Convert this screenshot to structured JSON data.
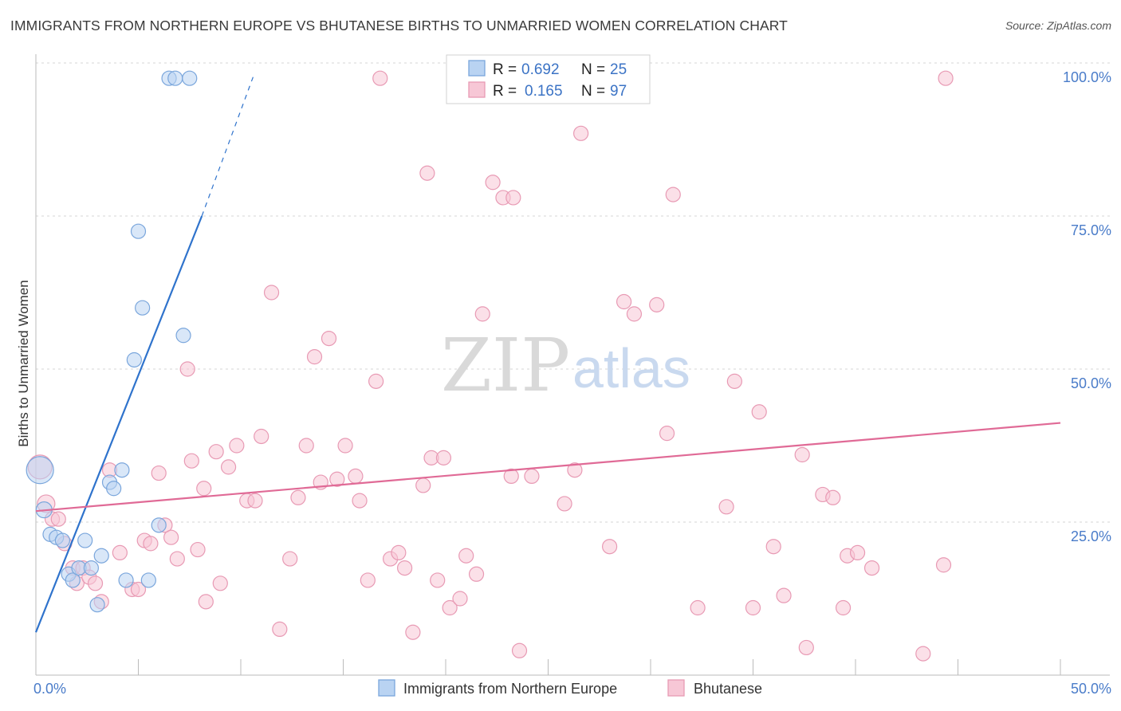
{
  "title": "IMMIGRANTS FROM NORTHERN EUROPE VS BHUTANESE BIRTHS TO UNMARRIED WOMEN CORRELATION CHART",
  "source": "Source: ZipAtlas.com",
  "watermark": {
    "zip": "ZIP",
    "atlas": "atlas"
  },
  "colors": {
    "blue_fill": "#b9d3f2",
    "blue_stroke": "#7aa6dc",
    "blue_line": "#2f73cc",
    "pink_fill": "#f7c7d6",
    "pink_stroke": "#e89ab4",
    "pink_line": "#e06a96",
    "grid": "#d5d5d5",
    "tick_label": "#4a7cc9"
  },
  "stats_box": {
    "rows": [
      {
        "series": "blue",
        "r_label": "R =",
        "r_value": "0.692",
        "n_label": "N =",
        "n_value": "25"
      },
      {
        "series": "pink",
        "r_label": "R =",
        "r_value": "0.165",
        "n_label": "N =",
        "n_value": "97"
      }
    ]
  },
  "chart_data": {
    "type": "scatter",
    "title": "IMMIGRANTS FROM NORTHERN EUROPE VS BHUTANESE BIRTHS TO UNMARRIED WOMEN CORRELATION CHART",
    "xlabel": "",
    "ylabel": "Births to Unmarried Women",
    "xlim": [
      0,
      50
    ],
    "ylim": [
      0,
      100
    ],
    "x_tick_labels": [
      "0.0%",
      "50.0%"
    ],
    "y_tick_labels": [
      "25.0%",
      "50.0%",
      "75.0%",
      "100.0%"
    ],
    "y_ticks": [
      25,
      50,
      75,
      100
    ],
    "legend": [
      "Immigrants from Northern Europe",
      "Bhutanese"
    ],
    "legend_position": "bottom-center",
    "series": [
      {
        "name": "Immigrants from Northern Europe",
        "color": "blue",
        "r": 0.692,
        "n": 25,
        "points": [
          [
            0.2,
            33.5,
            17
          ],
          [
            0.4,
            27,
            10
          ],
          [
            0.7,
            23,
            9
          ],
          [
            1.0,
            22.5,
            9
          ],
          [
            1.3,
            22,
            9
          ],
          [
            1.6,
            16.5,
            9
          ],
          [
            1.8,
            15.5,
            9
          ],
          [
            2.1,
            17.5,
            9
          ],
          [
            2.4,
            22,
            9
          ],
          [
            2.7,
            17.5,
            9
          ],
          [
            3.0,
            11.5,
            9
          ],
          [
            3.2,
            19.5,
            9
          ],
          [
            3.6,
            31.5,
            9
          ],
          [
            3.8,
            30.5,
            9
          ],
          [
            4.2,
            33.5,
            9
          ],
          [
            4.4,
            15.5,
            9
          ],
          [
            4.8,
            51.5,
            9
          ],
          [
            5.0,
            72.5,
            9
          ],
          [
            5.2,
            60,
            9
          ],
          [
            5.5,
            15.5,
            9
          ],
          [
            6.0,
            24.5,
            9
          ],
          [
            7.2,
            55.5,
            9
          ],
          [
            6.5,
            97.5,
            9
          ],
          [
            6.8,
            97.5,
            9
          ],
          [
            7.5,
            97.5,
            9
          ]
        ],
        "trend": {
          "x0": 0,
          "y0": 7.0,
          "x1": 8.1,
          "y1": 75.0,
          "dash_x1": 10.6,
          "dash_y1": 97.7
        }
      },
      {
        "name": "Bhutanese",
        "color": "pink",
        "r": 0.165,
        "n": 97,
        "points": [
          [
            0.2,
            34,
            15
          ],
          [
            0.5,
            28,
            11
          ],
          [
            0.8,
            25.5,
            9
          ],
          [
            1.1,
            25.5,
            9
          ],
          [
            1.4,
            21.5,
            9
          ],
          [
            1.8,
            17.5,
            9
          ],
          [
            2.0,
            15,
            9
          ],
          [
            2.3,
            17.5,
            9
          ],
          [
            2.6,
            16,
            9
          ],
          [
            2.9,
            15,
            9
          ],
          [
            3.2,
            12,
            9
          ],
          [
            3.6,
            33.5,
            9
          ],
          [
            4.1,
            20,
            9
          ],
          [
            4.7,
            14,
            9
          ],
          [
            5.0,
            14,
            9
          ],
          [
            5.3,
            22,
            9
          ],
          [
            5.6,
            21.5,
            9
          ],
          [
            6.0,
            33,
            9
          ],
          [
            6.3,
            24.5,
            9
          ],
          [
            6.6,
            22.5,
            9
          ],
          [
            6.9,
            19,
            9
          ],
          [
            7.4,
            50,
            9
          ],
          [
            7.6,
            35,
            9
          ],
          [
            7.9,
            20.5,
            9
          ],
          [
            8.2,
            30.5,
            9
          ],
          [
            8.3,
            12,
            9
          ],
          [
            8.8,
            36.5,
            9
          ],
          [
            9.0,
            15,
            9
          ],
          [
            9.4,
            34,
            9
          ],
          [
            9.8,
            37.5,
            9
          ],
          [
            10.3,
            28.5,
            9
          ],
          [
            10.7,
            28.5,
            9
          ],
          [
            11.0,
            39,
            9
          ],
          [
            11.5,
            62.5,
            9
          ],
          [
            11.9,
            7.5,
            9
          ],
          [
            12.4,
            19,
            9
          ],
          [
            12.8,
            29,
            9
          ],
          [
            13.2,
            37.5,
            9
          ],
          [
            13.6,
            52,
            9
          ],
          [
            13.9,
            31.5,
            9
          ],
          [
            14.3,
            55,
            9
          ],
          [
            14.7,
            32,
            9
          ],
          [
            15.1,
            37.5,
            9
          ],
          [
            15.6,
            32.5,
            9
          ],
          [
            15.8,
            28.5,
            9
          ],
          [
            16.2,
            15.5,
            9
          ],
          [
            16.6,
            48,
            9
          ],
          [
            16.8,
            97.5,
            9
          ],
          [
            17.3,
            19,
            9
          ],
          [
            17.7,
            20,
            9
          ],
          [
            18.0,
            17.5,
            9
          ],
          [
            18.4,
            7,
            9
          ],
          [
            18.9,
            31,
            9
          ],
          [
            19.1,
            82,
            9
          ],
          [
            19.3,
            35.5,
            9
          ],
          [
            19.6,
            15.5,
            9
          ],
          [
            19.9,
            35.5,
            9
          ],
          [
            20.2,
            11,
            9
          ],
          [
            20.7,
            12.5,
            9
          ],
          [
            21.0,
            19.5,
            9
          ],
          [
            21.5,
            16.5,
            9
          ],
          [
            21.8,
            59,
            9
          ],
          [
            22.3,
            80.5,
            9
          ],
          [
            22.8,
            78,
            9
          ],
          [
            23.2,
            32.5,
            9
          ],
          [
            23.3,
            78,
            9
          ],
          [
            23.6,
            4,
            9
          ],
          [
            24.2,
            32.5,
            9
          ],
          [
            25.8,
            28,
            9
          ],
          [
            26.3,
            33.5,
            9
          ],
          [
            26.6,
            88.5,
            9
          ],
          [
            28.0,
            21,
            9
          ],
          [
            28.7,
            61,
            9
          ],
          [
            29.2,
            59,
            9
          ],
          [
            30.3,
            60.5,
            9
          ],
          [
            30.8,
            39.5,
            9
          ],
          [
            31.1,
            78.5,
            9
          ],
          [
            32.3,
            11,
            9
          ],
          [
            33.7,
            27.5,
            9
          ],
          [
            34.1,
            48,
            9
          ],
          [
            35.0,
            11,
            9
          ],
          [
            35.3,
            43,
            9
          ],
          [
            36.0,
            21,
            9
          ],
          [
            36.5,
            13,
            9
          ],
          [
            37.4,
            36,
            9
          ],
          [
            37.6,
            4.5,
            9
          ],
          [
            38.4,
            29.5,
            9
          ],
          [
            38.9,
            29,
            9
          ],
          [
            39.4,
            11,
            9
          ],
          [
            39.6,
            19.5,
            9
          ],
          [
            40.1,
            20,
            9
          ],
          [
            40.8,
            17.5,
            9
          ],
          [
            43.3,
            3.5,
            9
          ],
          [
            44.3,
            18,
            9
          ],
          [
            44.4,
            97.5,
            9
          ]
        ],
        "trend": {
          "x0": 0,
          "y0": 26.8,
          "x1": 50,
          "y1": 41.2
        }
      }
    ]
  }
}
